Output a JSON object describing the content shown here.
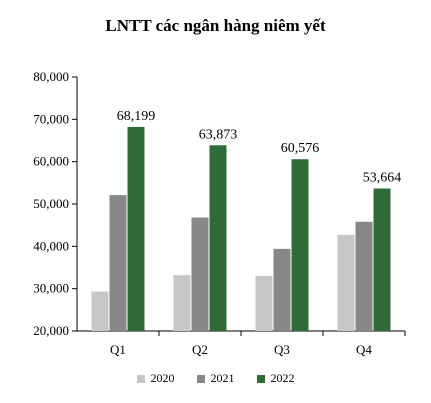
{
  "chart_data": {
    "type": "bar",
    "title": "LNTT các ngân hàng niêm yết",
    "categories": [
      "Q1",
      "Q2",
      "Q3",
      "Q4"
    ],
    "series": [
      {
        "name": "2020",
        "color": "#c6c6c6",
        "values": [
          29300,
          33200,
          33000,
          42700
        ]
      },
      {
        "name": "2021",
        "color": "#878787",
        "values": [
          52100,
          46800,
          39400,
          45800
        ]
      },
      {
        "name": "2022",
        "color": "#2e6b36",
        "values": [
          68199,
          63873,
          60576,
          53664
        ]
      }
    ],
    "data_labels": [
      "68,199",
      "63,873",
      "60,576",
      "53,664"
    ],
    "y_ticks": [
      "20,000",
      "30,000",
      "40,000",
      "50,000",
      "60,000",
      "70,000",
      "80,000"
    ],
    "ylim": [
      20000,
      80000
    ],
    "legend_position": "bottom"
  }
}
